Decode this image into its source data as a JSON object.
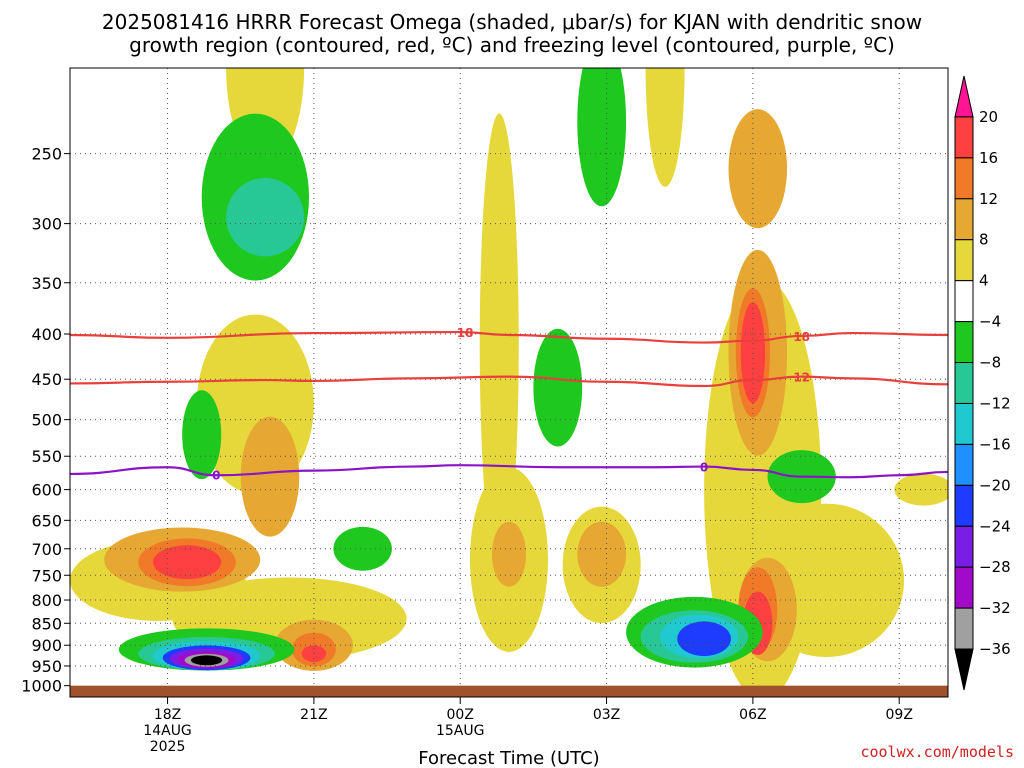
{
  "title": {
    "line1": "2025081416 HRRR Forecast Omega (shaded, μbar/s) for KJAN with dendritic snow",
    "line2": "growth region (contoured, red, ºC) and freezing level (contoured, purple, ºC)"
  },
  "credit": "coolwx.com/models",
  "chart_data": {
    "type": "heatmap",
    "title": "2025081416 HRRR Forecast Omega (shaded, μbar/s) for KJAN with dendritic snow growth region (contoured, red, ºC) and freezing level (contoured, purple, ºC)",
    "xlabel": "Forecast Time (UTC)",
    "ylabel": "",
    "x_range_hours_from_00Z_15AUG": [
      -8,
      10
    ],
    "y_scale": "log pressure (inverted)",
    "y_range_hPa": [
      1000,
      200
    ],
    "y_ticks": [
      250,
      300,
      350,
      400,
      450,
      500,
      550,
      600,
      650,
      700,
      750,
      800,
      850,
      900,
      950,
      1000
    ],
    "x_ticks": [
      {
        "hour": -6,
        "label": "18Z",
        "sub1": "14AUG",
        "sub2": "2025"
      },
      {
        "hour": -3,
        "label": "21Z",
        "sub1": "",
        "sub2": ""
      },
      {
        "hour": 0,
        "label": "00Z",
        "sub1": "15AUG",
        "sub2": ""
      },
      {
        "hour": 3,
        "label": "03Z",
        "sub1": "",
        "sub2": ""
      },
      {
        "hour": 6,
        "label": "06Z",
        "sub1": "",
        "sub2": ""
      },
      {
        "hour": 9,
        "label": "09Z",
        "sub1": "",
        "sub2": ""
      }
    ],
    "grid": true,
    "colorbar": {
      "position": "right",
      "levels": [
        20,
        16,
        12,
        8,
        4,
        -4,
        -8,
        -12,
        -16,
        -20,
        -24,
        -28,
        -32,
        -36
      ],
      "colors": [
        "#ff1493",
        "#ff4040",
        "#f07a28",
        "#e6a832",
        "#e6d83a",
        "#ffffff",
        "#1ec81e",
        "#28c896",
        "#20c8d0",
        "#1e90ff",
        "#1e3cff",
        "#7a1ee6",
        "#a00ac8",
        "#a0a0a0",
        "#000000"
      ]
    },
    "contours": [
      {
        "name": "dgz_18",
        "color": "#e8403c",
        "label": "18",
        "points": [
          [
            -8.0,
            401
          ],
          [
            -6.0,
            404
          ],
          [
            -3.0,
            399
          ],
          [
            0.0,
            398
          ],
          [
            1.0,
            401
          ],
          [
            3.0,
            405
          ],
          [
            5.0,
            409
          ],
          [
            6.0,
            407
          ],
          [
            7.0,
            402
          ],
          [
            8.0,
            399
          ],
          [
            10.0,
            401
          ]
        ],
        "label_positions": [
          [
            0.1,
            398
          ],
          [
            7.0,
            402
          ]
        ]
      },
      {
        "name": "dgz_12",
        "color": "#e8403c",
        "label": "12",
        "points": [
          [
            -8.0,
            455
          ],
          [
            -6.0,
            453
          ],
          [
            -4.0,
            451
          ],
          [
            -3.0,
            452
          ],
          [
            -1.0,
            449
          ],
          [
            1.0,
            447
          ],
          [
            3.0,
            453
          ],
          [
            5.0,
            458
          ],
          [
            6.0,
            451
          ],
          [
            7.0,
            447
          ],
          [
            8.0,
            449
          ],
          [
            10.0,
            456
          ]
        ],
        "label_positions": [
          [
            7.0,
            447
          ]
        ]
      },
      {
        "name": "freezing_level_0",
        "color": "#8c14c8",
        "label": "0",
        "points": [
          [
            -8.0,
            576
          ],
          [
            -6.0,
            566
          ],
          [
            -5.0,
            578
          ],
          [
            -3.0,
            571
          ],
          [
            -1.0,
            565
          ],
          [
            0.0,
            563
          ],
          [
            2.0,
            566
          ],
          [
            4.0,
            566
          ],
          [
            5.0,
            565
          ],
          [
            6.0,
            570
          ],
          [
            7.0,
            580
          ],
          [
            8.0,
            581
          ],
          [
            9.0,
            578
          ],
          [
            10.0,
            573
          ]
        ],
        "label_positions": [
          [
            -5.0,
            577
          ],
          [
            5.0,
            565
          ]
        ]
      }
    ],
    "shaded_regions": [
      {
        "value": 6,
        "center": [
          -6.2,
          760
        ],
        "rx": 1.8,
        "ry_hPa": 80
      },
      {
        "value": 6,
        "center": [
          -4.2,
          480
        ],
        "rx": 1.2,
        "ry_hPa": 110
      },
      {
        "value": 6,
        "center": [
          -3.5,
          840
        ],
        "rx": 2.4,
        "ry_hPa": 90
      },
      {
        "value": 6,
        "center": [
          1.0,
          720
        ],
        "rx": 0.8,
        "ry_hPa": 170
      },
      {
        "value": 6,
        "center": [
          2.9,
          730
        ],
        "rx": 0.8,
        "ry_hPa": 110
      },
      {
        "value": 6,
        "center": [
          6.2,
          600
        ],
        "rx": 1.2,
        "ry_hPa": 300
      },
      {
        "value": 6,
        "center": [
          4.2,
          200
        ],
        "rx": 0.4,
        "ry_hPa": 60
      },
      {
        "value": 6,
        "center": [
          7.5,
          760
        ],
        "rx": 1.6,
        "ry_hPa": 150
      },
      {
        "value": 6,
        "center": [
          9.5,
          600
        ],
        "rx": 0.6,
        "ry_hPa": 25
      },
      {
        "value": 6,
        "center": [
          -4.0,
          200
        ],
        "rx": 0.8,
        "ry_hPa": 50
      },
      {
        "value": 6,
        "center": [
          0.8,
          410
        ],
        "rx": 0.4,
        "ry_hPa": 220
      },
      {
        "value": 10,
        "center": [
          -5.7,
          720
        ],
        "rx": 1.6,
        "ry_hPa": 60
      },
      {
        "value": 10,
        "center": [
          -3.9,
          580
        ],
        "rx": 0.6,
        "ry_hPa": 90
      },
      {
        "value": 10,
        "center": [
          1.0,
          710
        ],
        "rx": 0.35,
        "ry_hPa": 60
      },
      {
        "value": 10,
        "center": [
          2.9,
          710
        ],
        "rx": 0.5,
        "ry_hPa": 60
      },
      {
        "value": 10,
        "center": [
          6.1,
          420
        ],
        "rx": 0.6,
        "ry_hPa": 110
      },
      {
        "value": 10,
        "center": [
          6.1,
          260
        ],
        "rx": 0.6,
        "ry_hPa": 40
      },
      {
        "value": 10,
        "center": [
          6.3,
          820
        ],
        "rx": 0.6,
        "ry_hPa": 110
      },
      {
        "value": 10,
        "center": [
          -3.0,
          900
        ],
        "rx": 0.8,
        "ry_hPa": 60
      },
      {
        "value": 14,
        "center": [
          -5.6,
          725
        ],
        "rx": 1.0,
        "ry_hPa": 45
      },
      {
        "value": 14,
        "center": [
          6.0,
          420
        ],
        "rx": 0.35,
        "ry_hPa": 70
      },
      {
        "value": 14,
        "center": [
          -3.0,
          910
        ],
        "rx": 0.45,
        "ry_hPa": 40
      },
      {
        "value": 14,
        "center": [
          6.1,
          820
        ],
        "rx": 0.4,
        "ry_hPa": 90
      },
      {
        "value": 18,
        "center": [
          -5.6,
          725
        ],
        "rx": 0.7,
        "ry_hPa": 32
      },
      {
        "value": 18,
        "center": [
          6.0,
          420
        ],
        "rx": 0.25,
        "ry_hPa": 55
      },
      {
        "value": 18,
        "center": [
          6.1,
          850
        ],
        "rx": 0.3,
        "ry_hPa": 70
      },
      {
        "value": 18,
        "center": [
          -3.0,
          920
        ],
        "rx": 0.25,
        "ry_hPa": 20
      },
      {
        "value": -6,
        "center": [
          -4.2,
          280
        ],
        "rx": 1.1,
        "ry_hPa": 60
      },
      {
        "value": -6,
        "center": [
          -5.3,
          520
        ],
        "rx": 0.4,
        "ry_hPa": 60
      },
      {
        "value": -6,
        "center": [
          2.0,
          460
        ],
        "rx": 0.5,
        "ry_hPa": 70
      },
      {
        "value": -6,
        "center": [
          2.9,
          230
        ],
        "rx": 0.5,
        "ry_hPa": 50
      },
      {
        "value": -6,
        "center": [
          -2.0,
          700
        ],
        "rx": 0.6,
        "ry_hPa": 40
      },
      {
        "value": -6,
        "center": [
          7.0,
          580
        ],
        "rx": 0.7,
        "ry_hPa": 40
      },
      {
        "value": -6,
        "center": [
          -5.2,
          910
        ],
        "rx": 1.8,
        "ry_hPa": 50
      },
      {
        "value": -6,
        "center": [
          4.8,
          870
        ],
        "rx": 1.4,
        "ry_hPa": 80
      },
      {
        "value": -10,
        "center": [
          -4.0,
          295
        ],
        "rx": 0.8,
        "ry_hPa": 30
      },
      {
        "value": -10,
        "center": [
          -5.2,
          920
        ],
        "rx": 1.4,
        "ry_hPa": 40
      },
      {
        "value": -10,
        "center": [
          4.8,
          880
        ],
        "rx": 1.1,
        "ry_hPa": 60
      },
      {
        "value": -14,
        "center": [
          -5.2,
          925
        ],
        "rx": 1.1,
        "ry_hPa": 35
      },
      {
        "value": -14,
        "center": [
          4.9,
          880
        ],
        "rx": 0.8,
        "ry_hPa": 50
      },
      {
        "value": -22,
        "center": [
          -5.2,
          930
        ],
        "rx": 0.9,
        "ry_hPa": 30
      },
      {
        "value": -22,
        "center": [
          5.0,
          885
        ],
        "rx": 0.55,
        "ry_hPa": 40
      },
      {
        "value": -26,
        "center": [
          -5.2,
          932
        ],
        "rx": 0.75,
        "ry_hPa": 25
      },
      {
        "value": -30,
        "center": [
          -5.2,
          935
        ],
        "rx": 0.6,
        "ry_hPa": 20
      },
      {
        "value": -34,
        "center": [
          -5.2,
          936
        ],
        "rx": 0.45,
        "ry_hPa": 16
      },
      {
        "value": -38,
        "center": [
          -5.2,
          936
        ],
        "rx": 0.32,
        "ry_hPa": 12
      }
    ],
    "surface_band_hPa": [
      1000,
      1030
    ],
    "surface_color": "#a0522d"
  }
}
